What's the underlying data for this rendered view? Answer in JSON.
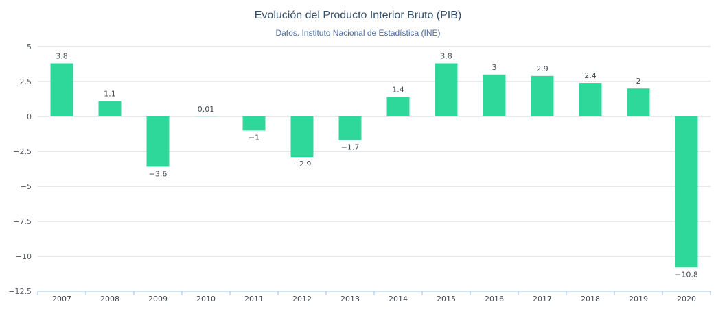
{
  "chart_data": {
    "type": "bar",
    "title": "Evolución del Producto Interior Bruto (PIB)",
    "subtitle": "Datos. Instituto Nacional de Estadística (INE)",
    "categories": [
      "2007",
      "2008",
      "2009",
      "2010",
      "2011",
      "2012",
      "2013",
      "2014",
      "2015",
      "2016",
      "2017",
      "2018",
      "2019",
      "2020"
    ],
    "values": [
      3.8,
      1.1,
      -3.6,
      0.01,
      -1,
      -2.9,
      -1.7,
      1.4,
      3.8,
      3,
      2.9,
      2.4,
      2,
      -10.8
    ],
    "data_labels": [
      "3.8",
      "1.1",
      "−3.6",
      "0.01",
      "−1",
      "−2.9",
      "−1.7",
      "1.4",
      "3.8",
      "3",
      "2.9",
      "2.4",
      "2",
      "−10.8"
    ],
    "ylim": [
      -12.5,
      5
    ],
    "yticks": [
      5,
      2.5,
      0,
      -2.5,
      -5,
      -7.5,
      -10,
      -12.5
    ],
    "ytick_labels": [
      "5",
      "2.5",
      "0",
      "−2.5",
      "−5",
      "−7.5",
      "−10",
      "−12.5"
    ],
    "xlabel": "",
    "ylabel": "",
    "grid": true,
    "legend": "none",
    "bar_color": "#2ed89a"
  }
}
